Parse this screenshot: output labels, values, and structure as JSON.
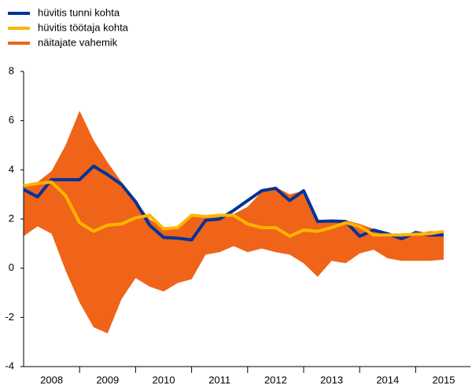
{
  "chart_data": {
    "type": "line",
    "categories": [
      "2008",
      null,
      null,
      null,
      "2009",
      null,
      null,
      null,
      "2010",
      null,
      null,
      null,
      "2011",
      null,
      null,
      null,
      "2012",
      null,
      null,
      null,
      "2013",
      null,
      null,
      null,
      "2014",
      null,
      null,
      null,
      "2015",
      null,
      null
    ],
    "series": [
      {
        "name": "hüvitis tunni kohta",
        "color": "#003299",
        "values": [
          3.2,
          2.9,
          3.6,
          3.6,
          3.6,
          4.15,
          3.8,
          3.4,
          2.7,
          1.75,
          1.25,
          1.22,
          1.15,
          1.95,
          2.0,
          2.35,
          2.75,
          3.15,
          3.25,
          2.75,
          3.15,
          1.9,
          1.92,
          1.9,
          1.3,
          1.55,
          1.4,
          1.2,
          1.45,
          1.35,
          1.35
        ]
      },
      {
        "name": "hüvitis töötaja kohta",
        "color": "#ffb400",
        "values": [
          3.35,
          3.45,
          3.5,
          2.95,
          1.85,
          1.5,
          1.75,
          1.8,
          2.05,
          2.15,
          1.6,
          1.65,
          2.15,
          2.1,
          2.15,
          2.15,
          1.8,
          1.65,
          1.65,
          1.3,
          1.55,
          1.5,
          1.65,
          1.85,
          1.7,
          1.35,
          1.35,
          1.35,
          1.38,
          1.4,
          1.5
        ]
      },
      {
        "name": "näitajate vahemik",
        "color": "#ef6419",
        "type": "range",
        "upper": [
          3.3,
          3.5,
          3.95,
          5.0,
          6.4,
          5.2,
          4.3,
          3.5,
          2.75,
          2.0,
          1.6,
          1.6,
          2.2,
          2.15,
          2.2,
          2.2,
          2.5,
          3.1,
          3.3,
          3.0,
          3.15,
          1.95,
          1.95,
          1.95,
          1.8,
          1.6,
          1.4,
          1.35,
          1.4,
          1.5,
          1.5
        ],
        "lower": [
          1.3,
          1.7,
          1.4,
          -0.1,
          -1.4,
          -2.4,
          -2.65,
          -1.25,
          -0.4,
          -0.75,
          -0.95,
          -0.6,
          -0.45,
          0.55,
          0.65,
          0.9,
          0.65,
          0.8,
          0.65,
          0.55,
          0.2,
          -0.35,
          0.3,
          0.2,
          0.6,
          0.75,
          0.4,
          0.3,
          0.3,
          0.3,
          0.35
        ]
      }
    ],
    "ylim": [
      -4,
      8
    ],
    "yticks": [
      -4,
      -2,
      0,
      2,
      4,
      6,
      8
    ],
    "legend": "top-left",
    "grid": false
  }
}
